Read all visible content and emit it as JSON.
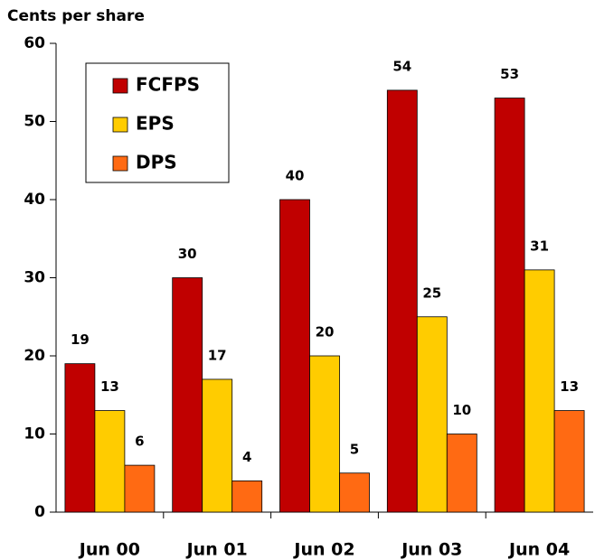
{
  "chart_data": {
    "type": "bar",
    "y_label": "Cents per share",
    "categories": [
      "Jun 00",
      "Jun 01",
      "Jun 02",
      "Jun 03",
      "Jun 04"
    ],
    "series": [
      {
        "name": "FCFPS",
        "color": "#c00000",
        "values": [
          19,
          30,
          40,
          54,
          53
        ]
      },
      {
        "name": "EPS",
        "color": "#ffcc00",
        "values": [
          13,
          17,
          20,
          25,
          31
        ]
      },
      {
        "name": "DPS",
        "color": "#ff6a13",
        "values": [
          6,
          4,
          5,
          10,
          13
        ]
      }
    ],
    "ylim": [
      0,
      60
    ],
    "yticks": [
      0,
      10,
      20,
      30,
      40,
      50,
      60
    ],
    "grid": false
  }
}
